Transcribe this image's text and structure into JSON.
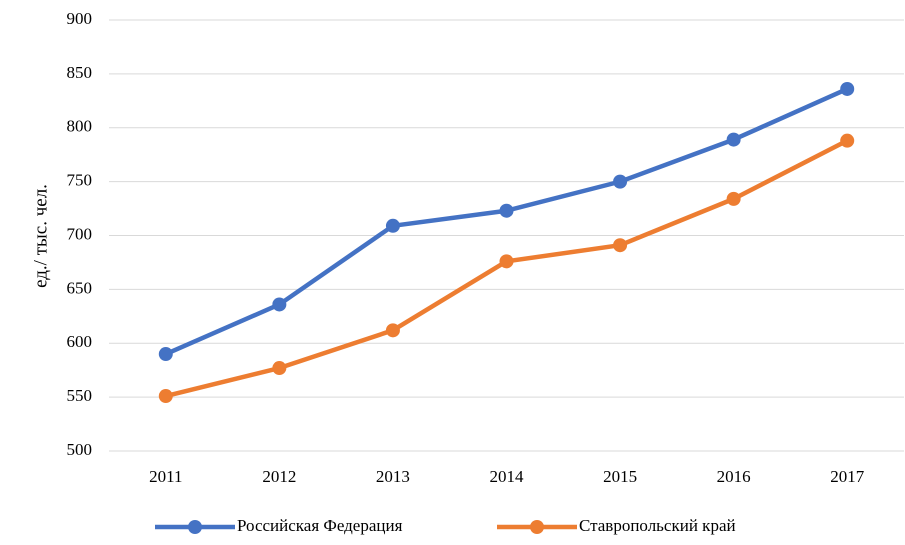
{
  "chart_data": {
    "type": "line",
    "y_label": "ед./ тыс. чел.",
    "categories": [
      "2011",
      "2012",
      "2013",
      "2014",
      "2015",
      "2016",
      "2017"
    ],
    "series": [
      {
        "name": "Российская Федерация",
        "color": "#4472c4",
        "values": [
          590,
          636,
          709,
          723,
          750,
          789,
          836
        ]
      },
      {
        "name": "Ставропольский край",
        "color": "#ed7d31",
        "values": [
          551,
          577,
          612,
          676,
          691,
          734,
          788
        ]
      }
    ],
    "ylim": [
      500,
      900
    ],
    "yticks": [
      500,
      550,
      600,
      650,
      700,
      750,
      800,
      850,
      900
    ],
    "grid": true,
    "legend": "bottom"
  }
}
